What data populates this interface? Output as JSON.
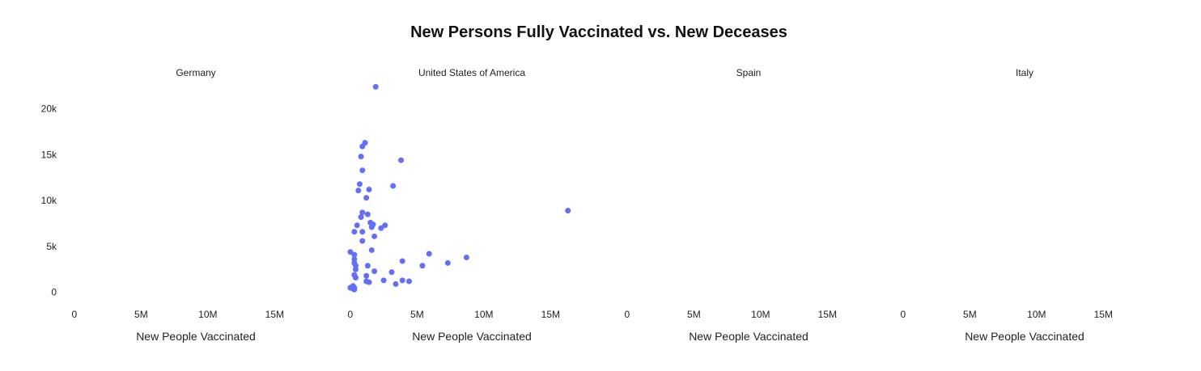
{
  "chart_data": {
    "type": "scatter",
    "title": "New Persons Fully Vaccinated vs. New Deceases",
    "marker_color": "#636efa",
    "y_ticks": [
      {
        "value": 0,
        "label": "0"
      },
      {
        "value": 5000,
        "label": "5k"
      },
      {
        "value": 10000,
        "label": "10k"
      },
      {
        "value": 15000,
        "label": "15k"
      },
      {
        "value": 20000,
        "label": "20k"
      }
    ],
    "x_ticks": [
      {
        "value": 0,
        "label": "0"
      },
      {
        "value": 5000000,
        "label": "5M"
      },
      {
        "value": 10000000,
        "label": "10M"
      },
      {
        "value": 15000000,
        "label": "15M"
      }
    ],
    "ylim": [
      -1000,
      22700
    ],
    "facets": [
      {
        "name": "Germany",
        "xlabel": "New People Vaccinated",
        "xlim": [
          -600000,
          18800000
        ],
        "points": []
      },
      {
        "name": "United States of America",
        "xlabel": "New People Vaccinated",
        "xlim": [
          -600000,
          18800000
        ],
        "points": [
          [
            1900000,
            22400
          ],
          [
            1100000,
            16300
          ],
          [
            900000,
            15900
          ],
          [
            3800000,
            14400
          ],
          [
            800000,
            14800
          ],
          [
            900000,
            13300
          ],
          [
            700000,
            11800
          ],
          [
            3200000,
            11600
          ],
          [
            600000,
            11100
          ],
          [
            1400000,
            11200
          ],
          [
            1200000,
            10300
          ],
          [
            16300000,
            8900
          ],
          [
            900000,
            8700
          ],
          [
            1300000,
            8500
          ],
          [
            800000,
            8200
          ],
          [
            1500000,
            7600
          ],
          [
            1700000,
            7400
          ],
          [
            2600000,
            7300
          ],
          [
            1600000,
            7100
          ],
          [
            500000,
            7300
          ],
          [
            2300000,
            7000
          ],
          [
            900000,
            6600
          ],
          [
            300000,
            6600
          ],
          [
            1800000,
            6100
          ],
          [
            900000,
            5600
          ],
          [
            1600000,
            4600
          ],
          [
            0,
            4400
          ],
          [
            5900000,
            4200
          ],
          [
            300000,
            4100
          ],
          [
            8700000,
            3800
          ],
          [
            300000,
            3600
          ],
          [
            3900000,
            3400
          ],
          [
            300000,
            3200
          ],
          [
            7300000,
            3200
          ],
          [
            400000,
            2900
          ],
          [
            1300000,
            2900
          ],
          [
            5400000,
            2900
          ],
          [
            400000,
            2500
          ],
          [
            1800000,
            2300
          ],
          [
            3100000,
            2200
          ],
          [
            300000,
            1900
          ],
          [
            1200000,
            1800
          ],
          [
            400000,
            1600
          ],
          [
            3900000,
            1300
          ],
          [
            2500000,
            1300
          ],
          [
            1200000,
            1200
          ],
          [
            1400000,
            1100
          ],
          [
            4400000,
            1200
          ],
          [
            3400000,
            900
          ],
          [
            200000,
            700
          ],
          [
            0,
            500
          ],
          [
            300000,
            500
          ],
          [
            200000,
            400
          ],
          [
            300000,
            300
          ]
        ]
      },
      {
        "name": "Spain",
        "xlabel": "New People Vaccinated",
        "xlim": [
          -600000,
          18800000
        ],
        "points": []
      },
      {
        "name": "Italy",
        "xlabel": "New People Vaccinated",
        "xlim": [
          -600000,
          18800000
        ],
        "points": []
      }
    ]
  }
}
